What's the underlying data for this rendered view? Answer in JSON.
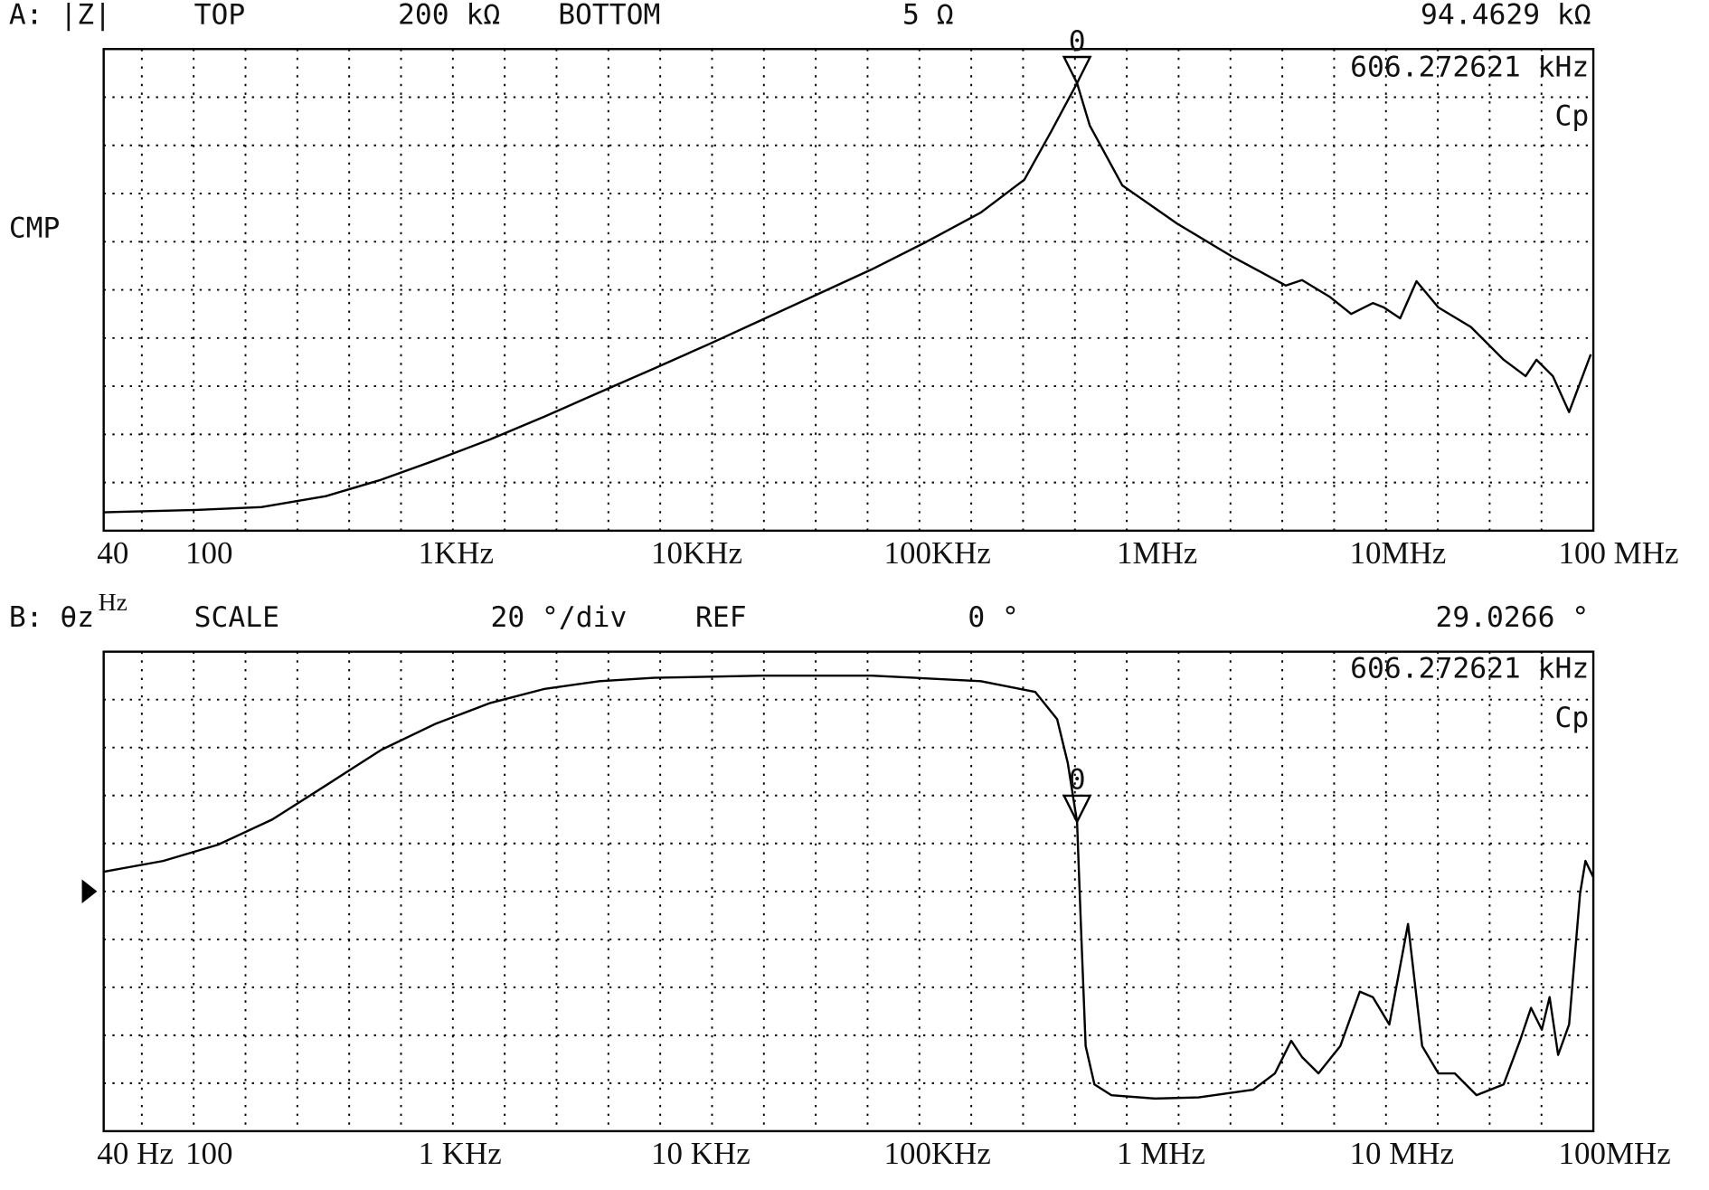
{
  "chart_data": [
    {
      "type": "line",
      "header": [
        "A: |Z|",
        "TOP",
        "200 kΩ",
        "BOTTOM",
        "5 Ω",
        "94.4629 kΩ"
      ],
      "side_label": "CMP",
      "marker_readout": "606.272621 kHz",
      "mode_label": "Cp",
      "x_unit_label": "Hz",
      "marker": {
        "x": 606272,
        "label": "0"
      },
      "xlog": true,
      "ylog": true,
      "xlim": [
        40,
        100000000
      ],
      "ylim": [
        5,
        200000
      ],
      "xticks": [
        {
          "value": 40,
          "label": "40"
        },
        {
          "value": 100,
          "label": "100"
        },
        {
          "value": 1000,
          "label": "1KHz"
        },
        {
          "value": 10000,
          "label": "10KHz"
        },
        {
          "value": 100000,
          "label": "100KHz"
        },
        {
          "value": 1000000,
          "label": "1MHz"
        },
        {
          "value": 10000000,
          "label": "10MHz"
        },
        {
          "value": 100000000,
          "label": "100 MHz"
        }
      ],
      "x": [
        40,
        100,
        190,
        360,
        620,
        1070,
        1830,
        3140,
        5390,
        9230,
        15800,
        27100,
        46500,
        79600,
        136000,
        234000,
        360000,
        471000,
        606272,
        687000,
        948000,
        1630000,
        2790000,
        4780000,
        5610000,
        7350000,
        9120000,
        11300000,
        12600000,
        14800000,
        17400000,
        21600000,
        29800000,
        41200000,
        51200000,
        57000000,
        67000000,
        78700000,
        97500000
      ],
      "series": [
        {
          "color": "#000000",
          "values": [
            7.5,
            7.9,
            8.4,
            10.7,
            15.3,
            23.7,
            37.3,
            61.8,
            105,
            177,
            301,
            522,
            906,
            1570,
            2860,
            5480,
            11300,
            33100,
            94463,
            37300,
            9970,
            4300,
            2100,
            1100,
            1240,
            863,
            589,
            748,
            679,
            535,
            1210,
            679,
            442,
            215,
            150,
            215,
            150,
            68,
            242
          ]
        }
      ]
    },
    {
      "type": "line",
      "header": [
        "B: θz",
        "SCALE",
        "20 °/div",
        "REF",
        "0 °",
        "29.0266 °"
      ],
      "marker_readout": "606.272621 kHz",
      "mode_label": "Cp",
      "marker": {
        "x": 606272,
        "label": "0"
      },
      "ref": 0,
      "xlog": true,
      "ylog": false,
      "xlim": [
        40,
        100000000
      ],
      "ylim": [
        -100,
        100
      ],
      "xticks": [
        {
          "value": 40,
          "label": "40 Hz"
        },
        {
          "value": 100,
          "label": "100"
        },
        {
          "value": 1000,
          "label": "1 KHz"
        },
        {
          "value": 10000,
          "label": "10 KHz"
        },
        {
          "value": 100000,
          "label": "100KHz"
        },
        {
          "value": 1000000,
          "label": "1 MHz"
        },
        {
          "value": 10000000,
          "label": "10 MHz"
        },
        {
          "value": 100000000,
          "label": "100MHz"
        }
      ],
      "x": [
        40,
        72,
        124,
        212,
        364,
        624,
        1070,
        1830,
        3140,
        5390,
        9230,
        27100,
        79600,
        234000,
        401000,
        498000,
        553000,
        606272,
        630000,
        660000,
        720000,
        851000,
        1310000,
        2020000,
        3460000,
        4290000,
        5040000,
        5610000,
        6600000,
        8190000,
        9930000,
        11300000,
        13300000,
        16000000,
        18400000,
        21600000,
        25400000,
        31500000,
        41200000,
        48400000,
        54000000,
        60100000,
        64900000,
        70600000,
        78700000,
        87700000,
        92500000,
        100000000
      ],
      "series": [
        {
          "color": "#000000",
          "values": [
            8.2,
            12.7,
            19.5,
            30,
            44.5,
            59.1,
            70,
            78.6,
            84.5,
            87.7,
            89.1,
            90,
            90,
            87.7,
            83.2,
            71.8,
            53.6,
            29.0266,
            -14.5,
            -64.5,
            -80.5,
            -85,
            -86.4,
            -85.9,
            -82.7,
            -75.9,
            -62.3,
            -69.1,
            -75.9,
            -64.5,
            -41.8,
            -44.1,
            -55.5,
            -13.6,
            -64.5,
            -75.9,
            -75.9,
            -85,
            -80.5,
            -62.3,
            -48.6,
            -57.7,
            -44.1,
            -68.2,
            -55.5,
            -0.9,
            12.7,
            5.9
          ]
        }
      ]
    }
  ]
}
